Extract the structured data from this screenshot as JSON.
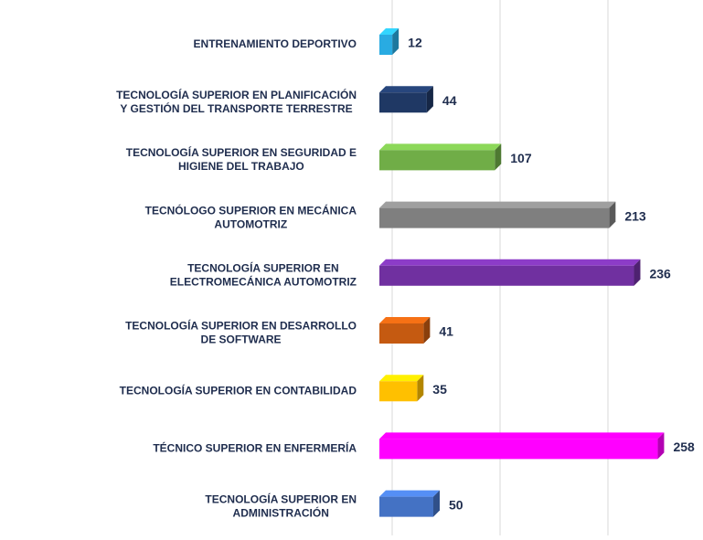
{
  "chart_data": {
    "type": "bar3d",
    "categories": [
      [
        "ENTRENAMIENTO DEPORTIVO"
      ],
      [
        "TECNOLOGÍA SUPERIOR EN PLANIFICACIÓN",
        "Y GESTIÓN DEL TRANSPORTE TERRESTRE"
      ],
      [
        "TECNOLOGÍA SUPERIOR EN SEGURIDAD E",
        "HIGIENE DEL TRABAJO"
      ],
      [
        "TECNÓLOGO SUPERIOR EN MECÁNICA",
        "AUTOMOTRIZ"
      ],
      [
        "TECNOLOGÍA SUPERIOR EN",
        "ELECTROMECÁNICA AUTOMOTRIZ"
      ],
      [
        "TECNOLOGÍA SUPERIOR EN DESARROLLO",
        "DE SOFTWARE"
      ],
      [
        "TECNOLOGÍA SUPERIOR EN CONTABILIDAD"
      ],
      [
        "TÉCNICO SUPERIOR EN ENFERMERÍA"
      ],
      [
        "TECNOLOGÍA SUPERIOR EN",
        "ADMINISTRACIÓN"
      ]
    ],
    "values": [
      12,
      44,
      107,
      213,
      236,
      41,
      35,
      258,
      50
    ],
    "colors": [
      "#29abe2",
      "#1f3864",
      "#70ad47",
      "#7f7f7f",
      "#7030a0",
      "#c55a11",
      "#ffc000",
      "#ff00ff",
      "#4472c4"
    ],
    "xlim": [
      0,
      300
    ],
    "xticks": [
      0,
      100,
      200,
      300
    ],
    "grid": true
  }
}
